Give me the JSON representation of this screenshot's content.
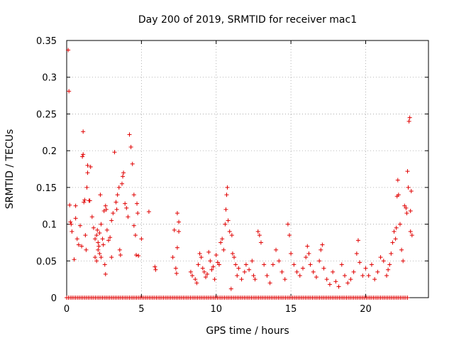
{
  "chart_data": {
    "type": "scatter",
    "title": "Day 200 of 2019, SRMTID for receiver mac1",
    "xlabel": "GPS time / hours",
    "ylabel": "SRMTID / TECUs",
    "xlim": [
      0,
      24.2
    ],
    "ylim": [
      0,
      0.35
    ],
    "grid": true,
    "marker": "+",
    "color": "#e00000",
    "x_ticks": [
      0,
      5,
      10,
      15,
      20
    ],
    "x_tick_labels": [
      "0",
      "5",
      "10",
      "15",
      "20"
    ],
    "y_ticks": [
      0,
      0.05,
      0.1,
      0.15,
      0.2,
      0.25,
      0.3,
      0.35
    ],
    "y_tick_labels": [
      "0",
      "0.05",
      "0.1",
      "0.15",
      "0.2",
      "0.25",
      "0.3",
      "0.35"
    ],
    "points": [
      [
        0.1,
        0.337
      ],
      [
        0.15,
        0.281
      ],
      [
        0.2,
        0.126
      ],
      [
        0.25,
        0.103
      ],
      [
        0.3,
        0.1
      ],
      [
        0.35,
        0.09
      ],
      [
        0.5,
        0.052
      ],
      [
        0.6,
        0.125
      ],
      [
        0.6,
        0.108
      ],
      [
        0.7,
        0.08
      ],
      [
        0.8,
        0.072
      ],
      [
        0.9,
        0.098
      ],
      [
        1.0,
        0.07
      ],
      [
        1.05,
        0.192
      ],
      [
        1.1,
        0.195
      ],
      [
        1.1,
        0.226
      ],
      [
        1.15,
        0.13
      ],
      [
        1.2,
        0.133
      ],
      [
        1.25,
        0.085
      ],
      [
        1.3,
        0.065
      ],
      [
        1.35,
        0.15
      ],
      [
        1.4,
        0.17
      ],
      [
        1.4,
        0.18
      ],
      [
        1.5,
        0.132
      ],
      [
        1.55,
        0.132
      ],
      [
        1.6,
        0.178
      ],
      [
        1.7,
        0.11
      ],
      [
        1.8,
        0.095
      ],
      [
        1.9,
        0.08
      ],
      [
        1.9,
        0.055
      ],
      [
        2.0,
        0.05
      ],
      [
        2.0,
        0.085
      ],
      [
        2.05,
        0.092
      ],
      [
        2.1,
        0.065
      ],
      [
        2.1,
        0.075
      ],
      [
        2.15,
        0.07
      ],
      [
        2.2,
        0.06
      ],
      [
        2.2,
        0.088
      ],
      [
        2.25,
        0.14
      ],
      [
        2.3,
        0.055
      ],
      [
        2.3,
        0.1
      ],
      [
        2.4,
        0.08
      ],
      [
        2.45,
        0.072
      ],
      [
        2.5,
        0.118
      ],
      [
        2.55,
        0.045
      ],
      [
        2.6,
        0.032
      ],
      [
        2.6,
        0.125
      ],
      [
        2.65,
        0.12
      ],
      [
        2.7,
        0.092
      ],
      [
        2.8,
        0.078
      ],
      [
        2.9,
        0.082
      ],
      [
        3.0,
        0.055
      ],
      [
        3.0,
        0.105
      ],
      [
        3.1,
        0.115
      ],
      [
        3.2,
        0.198
      ],
      [
        3.3,
        0.13
      ],
      [
        3.35,
        0.12
      ],
      [
        3.4,
        0.14
      ],
      [
        3.5,
        0.15
      ],
      [
        3.55,
        0.065
      ],
      [
        3.6,
        0.058
      ],
      [
        3.7,
        0.155
      ],
      [
        3.75,
        0.165
      ],
      [
        3.8,
        0.17
      ],
      [
        3.9,
        0.128
      ],
      [
        4.0,
        0.122
      ],
      [
        4.1,
        0.11
      ],
      [
        4.2,
        0.222
      ],
      [
        4.3,
        0.205
      ],
      [
        4.4,
        0.182
      ],
      [
        4.5,
        0.14
      ],
      [
        4.5,
        0.098
      ],
      [
        4.6,
        0.085
      ],
      [
        4.65,
        0.058
      ],
      [
        4.7,
        0.128
      ],
      [
        4.75,
        0.115
      ],
      [
        4.8,
        0.057
      ],
      [
        5.0,
        0.08
      ],
      [
        5.5,
        0.117
      ],
      [
        5.9,
        0.042
      ],
      [
        5.95,
        0.038
      ],
      [
        7.1,
        0.055
      ],
      [
        7.2,
        0.092
      ],
      [
        7.3,
        0.04
      ],
      [
        7.35,
        0.033
      ],
      [
        7.4,
        0.115
      ],
      [
        7.5,
        0.103
      ],
      [
        7.5,
        0.09
      ],
      [
        7.4,
        0.068
      ],
      [
        8.3,
        0.035
      ],
      [
        8.4,
        0.03
      ],
      [
        8.6,
        0.025
      ],
      [
        8.7,
        0.02
      ],
      [
        8.8,
        0.045
      ],
      [
        8.9,
        0.06
      ],
      [
        9.0,
        0.055
      ],
      [
        9.1,
        0.04
      ],
      [
        9.2,
        0.035
      ],
      [
        9.3,
        0.028
      ],
      [
        9.4,
        0.032
      ],
      [
        9.5,
        0.062
      ],
      [
        9.6,
        0.05
      ],
      [
        9.7,
        0.038
      ],
      [
        9.8,
        0.042
      ],
      [
        9.9,
        0.025
      ],
      [
        10.0,
        0.058
      ],
      [
        10.1,
        0.048
      ],
      [
        10.2,
        0.045
      ],
      [
        10.3,
        0.075
      ],
      [
        10.4,
        0.08
      ],
      [
        10.5,
        0.065
      ],
      [
        10.6,
        0.1
      ],
      [
        10.65,
        0.12
      ],
      [
        10.7,
        0.14
      ],
      [
        10.75,
        0.15
      ],
      [
        10.8,
        0.105
      ],
      [
        10.9,
        0.09
      ],
      [
        11.0,
        0.012
      ],
      [
        11.05,
        0.085
      ],
      [
        11.1,
        0.06
      ],
      [
        11.2,
        0.055
      ],
      [
        11.3,
        0.045
      ],
      [
        11.4,
        0.03
      ],
      [
        11.5,
        0.04
      ],
      [
        11.7,
        0.025
      ],
      [
        11.9,
        0.035
      ],
      [
        12.0,
        0.045
      ],
      [
        12.2,
        0.038
      ],
      [
        12.4,
        0.05
      ],
      [
        12.5,
        0.03
      ],
      [
        12.6,
        0.025
      ],
      [
        12.8,
        0.09
      ],
      [
        12.9,
        0.085
      ],
      [
        13.0,
        0.075
      ],
      [
        13.2,
        0.045
      ],
      [
        13.4,
        0.03
      ],
      [
        13.6,
        0.02
      ],
      [
        13.8,
        0.045
      ],
      [
        14.0,
        0.065
      ],
      [
        14.2,
        0.05
      ],
      [
        14.4,
        0.035
      ],
      [
        14.6,
        0.025
      ],
      [
        14.8,
        0.1
      ],
      [
        14.9,
        0.085
      ],
      [
        15.0,
        0.06
      ],
      [
        15.2,
        0.045
      ],
      [
        15.4,
        0.035
      ],
      [
        15.6,
        0.03
      ],
      [
        15.8,
        0.04
      ],
      [
        16.0,
        0.055
      ],
      [
        16.1,
        0.07
      ],
      [
        16.2,
        0.06
      ],
      [
        16.3,
        0.045
      ],
      [
        16.5,
        0.035
      ],
      [
        16.7,
        0.028
      ],
      [
        16.9,
        0.05
      ],
      [
        17.0,
        0.065
      ],
      [
        17.1,
        0.072
      ],
      [
        17.2,
        0.04
      ],
      [
        17.4,
        0.025
      ],
      [
        17.6,
        0.018
      ],
      [
        17.8,
        0.035
      ],
      [
        18.0,
        0.022
      ],
      [
        18.2,
        0.015
      ],
      [
        18.4,
        0.045
      ],
      [
        18.6,
        0.03
      ],
      [
        18.8,
        0.02
      ],
      [
        19.0,
        0.025
      ],
      [
        19.2,
        0.035
      ],
      [
        19.4,
        0.06
      ],
      [
        19.5,
        0.078
      ],
      [
        19.6,
        0.048
      ],
      [
        19.8,
        0.03
      ],
      [
        20.0,
        0.04
      ],
      [
        20.2,
        0.03
      ],
      [
        20.4,
        0.045
      ],
      [
        20.6,
        0.025
      ],
      [
        20.8,
        0.035
      ],
      [
        21.0,
        0.055
      ],
      [
        21.2,
        0.05
      ],
      [
        21.4,
        0.03
      ],
      [
        21.5,
        0.038
      ],
      [
        21.6,
        0.045
      ],
      [
        21.7,
        0.06
      ],
      [
        21.8,
        0.075
      ],
      [
        21.9,
        0.09
      ],
      [
        22.0,
        0.08
      ],
      [
        22.05,
        0.095
      ],
      [
        22.1,
        0.138
      ],
      [
        22.15,
        0.16
      ],
      [
        22.2,
        0.14
      ],
      [
        22.3,
        0.1
      ],
      [
        22.4,
        0.065
      ],
      [
        22.5,
        0.05
      ],
      [
        22.6,
        0.125
      ],
      [
        22.7,
        0.122
      ],
      [
        22.75,
        0.115
      ],
      [
        22.8,
        0.172
      ],
      [
        22.85,
        0.15
      ],
      [
        22.9,
        0.24
      ],
      [
        22.95,
        0.245
      ],
      [
        23.0,
        0.118
      ],
      [
        23.0,
        0.09
      ],
      [
        23.05,
        0.145
      ],
      [
        23.1,
        0.085
      ]
    ],
    "zero_points_x_range": [
      0,
      22.9
    ]
  }
}
